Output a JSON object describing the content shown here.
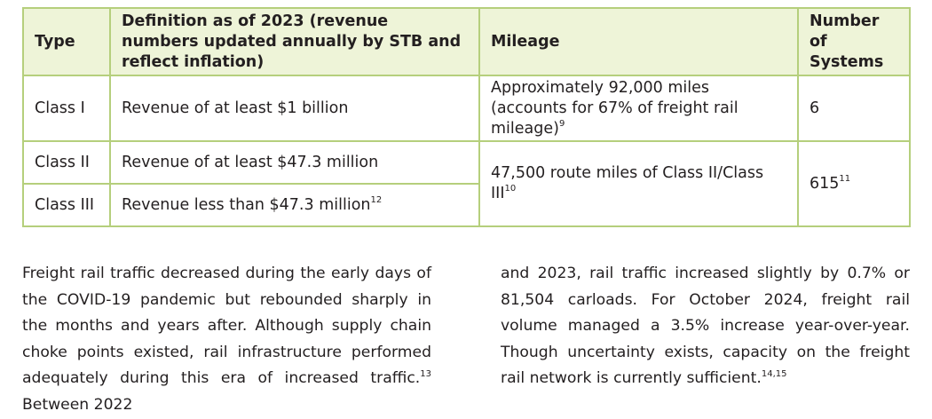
{
  "table": {
    "headers": {
      "type": "Type",
      "definition": "Definition as of 2023 (revenue numbers updated annually by STB and reflect inflation)",
      "mileage": "Mileage",
      "systems": "Number of Systems"
    },
    "rows": [
      {
        "type": "Class I",
        "definition": "Revenue of at least $1 billion",
        "definition_note": "",
        "mileage": "Approximately 92,000 miles (accounts for 67% of freight rail mileage)",
        "mileage_note": "9",
        "systems": "6",
        "systems_note": ""
      },
      {
        "type": "Class II",
        "definition": "Revenue of at least $47.3 million",
        "definition_note": ""
      },
      {
        "type": "Class III",
        "definition": "Revenue less than $47.3 million",
        "definition_note": "12"
      }
    ],
    "merged": {
      "mileage": "47,500 route miles of Class II/Class III",
      "mileage_note": "10",
      "systems": "615",
      "systems_note": "11"
    }
  },
  "body": {
    "left_text": "Freight rail traffic decreased during the early days of the COVID-19 pandemic but rebounded sharply in the months and years after. Although supply chain choke points existed, rail infrastructure performed adequately during this era of increased traffic.",
    "left_note": "13",
    "left_tail": " Between 2022",
    "right_text": "and 2023, rail traffic increased slightly by 0.7% or 81,504 carloads. For October 2024, freight rail volume managed a 3.5% increase year-over-year. Though uncertainty exists, capacity on the freight rail network is currently sufficient.",
    "right_note": "14,15"
  }
}
